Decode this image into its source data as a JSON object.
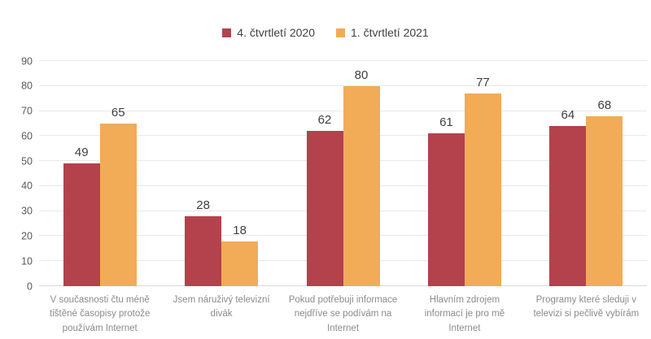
{
  "chart_data": {
    "type": "bar",
    "title": "",
    "categories": [
      "V současnosti čtu méně tištěné časopisy protože používám Internet",
      "Jsem náruživý televizní divák",
      "Pokud potřebuji informace nejdříve se podívám na Internet",
      "Hlavním zdrojem informací je pro mě Internet",
      "Programy které sleduji v televizi si pečlivě vybírám"
    ],
    "series": [
      {
        "name": "4. čtvrtletí 2020",
        "color": "#B3424D",
        "values": [
          49,
          28,
          62,
          61,
          64
        ]
      },
      {
        "name": "1. čtvrtletí 2021",
        "color": "#F2AB57",
        "values": [
          65,
          18,
          80,
          77,
          68
        ]
      }
    ],
    "ylim": [
      0,
      90
    ],
    "yticks": [
      0,
      10,
      20,
      30,
      40,
      50,
      60,
      70,
      80,
      90
    ],
    "grid": true,
    "legend_position": "top",
    "data_labels": true
  },
  "colors": {
    "background": "#FFFFFF",
    "grid_line": "#E9E9E9",
    "axis_line": "#D9D9D9",
    "value_label": "#404040",
    "tick_label": "#595959",
    "category_label": "#8B8B8B"
  }
}
